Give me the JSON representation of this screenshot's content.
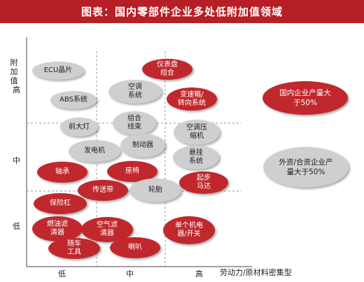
{
  "title": "图表：国内零部件企业多处低附加值领域",
  "y_axis": {
    "label": "附加值",
    "ticks": [
      "高",
      "中",
      "低"
    ]
  },
  "x_axis": {
    "label": "劳动力/原材料密集型",
    "ticks": [
      "低",
      "中",
      "高"
    ]
  },
  "colors": {
    "domestic": "#c0282d",
    "foreign": "#cfcfcf",
    "title_bar": "#b51f25"
  },
  "legend": [
    {
      "text": "国内企业产量大于50%",
      "group": "domestic"
    },
    {
      "text": "外资/合资企业产量大于50%",
      "group": "foreign"
    }
  ],
  "bubbles": [
    {
      "text": "ECU晶片",
      "group": "foreign"
    },
    {
      "text": "ABS系统",
      "group": "foreign"
    },
    {
      "text": "前大灯",
      "group": "foreign"
    },
    {
      "text": "发电机",
      "group": "foreign"
    },
    {
      "text": "仪表盘\n组合",
      "group": "domestic"
    },
    {
      "text": "空调\n系统",
      "group": "foreign"
    },
    {
      "text": "变速箱/\n转向系统",
      "group": "domestic"
    },
    {
      "text": "组合\n线束",
      "group": "foreign"
    },
    {
      "text": "制动器",
      "group": "foreign"
    },
    {
      "text": "空调压\n缩机",
      "group": "foreign"
    },
    {
      "text": "悬挂\n系统",
      "group": "foreign"
    },
    {
      "text": "轴承",
      "group": "domestic"
    },
    {
      "text": "座椅",
      "group": "domestic"
    },
    {
      "text": "起步\n马达",
      "group": "domestic"
    },
    {
      "text": "传送带",
      "group": "domestic"
    },
    {
      "text": "轮胎",
      "group": "foreign"
    },
    {
      "text": "保险杠",
      "group": "domestic"
    },
    {
      "text": "燃油滤\n清器",
      "group": "domestic"
    },
    {
      "text": "空气滤\n清器",
      "group": "domestic"
    },
    {
      "text": "单个机电\n器/开关",
      "group": "domestic"
    },
    {
      "text": "随车\n工具",
      "group": "domestic"
    },
    {
      "text": "喇叭",
      "group": "domestic"
    }
  ]
}
